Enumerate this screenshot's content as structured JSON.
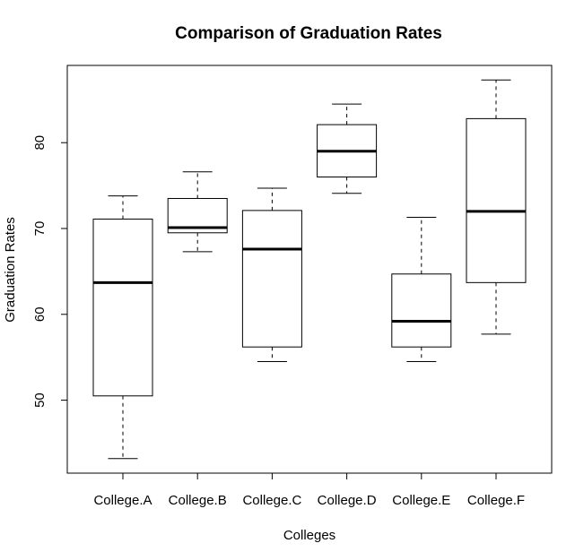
{
  "chart_data": {
    "type": "boxplot",
    "title": "Comparison of Graduation Rates",
    "xlabel": "Colleges",
    "ylabel": "Graduation Rates",
    "ylim": [
      41.5,
      89.0
    ],
    "yticks": [
      50,
      60,
      70,
      80
    ],
    "grid": false,
    "legend": "none",
    "categories": [
      "College.A",
      "College.B",
      "College.C",
      "College.D",
      "College.E",
      "College.F"
    ],
    "boxes": [
      {
        "name": "College.A",
        "whisker_low": 43.2,
        "q1": 50.5,
        "median": 63.7,
        "q3": 71.1,
        "whisker_high": 73.8
      },
      {
        "name": "College.B",
        "whisker_low": 67.3,
        "q1": 69.5,
        "median": 70.1,
        "q3": 73.5,
        "whisker_high": 76.6
      },
      {
        "name": "College.C",
        "whisker_low": 54.5,
        "q1": 56.2,
        "median": 67.6,
        "q3": 72.1,
        "whisker_high": 74.7
      },
      {
        "name": "College.D",
        "whisker_low": 74.1,
        "q1": 76.0,
        "median": 79.0,
        "q3": 82.1,
        "whisker_high": 84.5
      },
      {
        "name": "College.E",
        "whisker_low": 54.5,
        "q1": 56.2,
        "median": 59.2,
        "q3": 64.7,
        "whisker_high": 71.3
      },
      {
        "name": "College.F",
        "whisker_low": 57.7,
        "q1": 63.7,
        "median": 72.0,
        "q3": 82.8,
        "whisker_high": 87.3
      }
    ]
  }
}
